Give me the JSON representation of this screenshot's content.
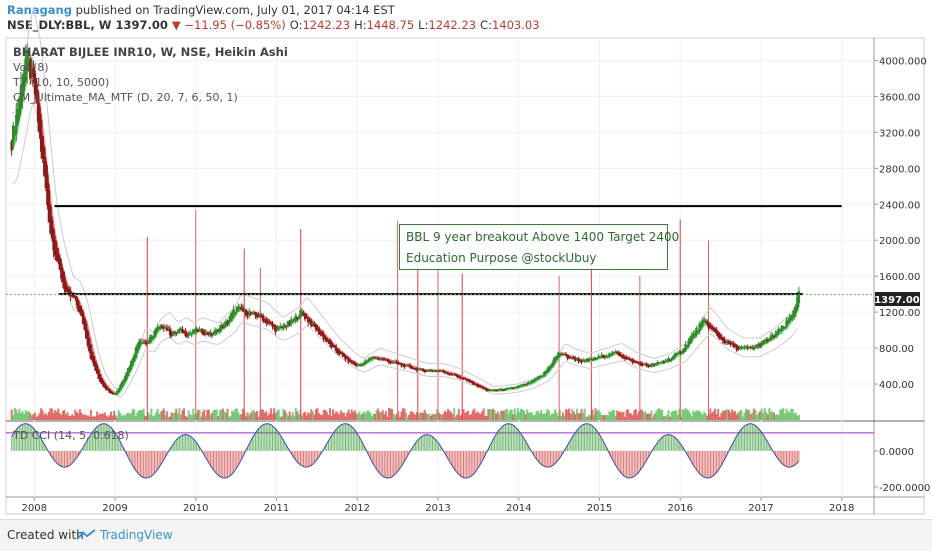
{
  "header": {
    "author": "Ranagang",
    "published": "published on TradingView.com, July 01, 2017 04:14 EST"
  },
  "quote": {
    "symbol": "NSE_DLY:BBL, W",
    "price": "1397.00",
    "change": "▼ −11.95 (−0.85%)",
    "o_label": "O:",
    "o": "1242.23",
    "h_label": "H:",
    "h": "1448.75",
    "l_label": "L:",
    "l": "1242.23",
    "c_label": "C:",
    "c": "1403.03"
  },
  "legend": {
    "title": "BHARAT BIJLEE INR10, W, NSE, Heikin Ashi",
    "vol": "Vol (8)",
    "tz": "TZ (10, 10, 5000)",
    "ma": "CM_Ultimate_MA_MTF (D, 20, 7, 6, 50, 1)",
    "cci": "TD CCI (14, 5, 0.618)"
  },
  "annotation": {
    "line1": "BBL 9 year breakout Above 1400 Target 2400",
    "line2": "Education Purpose @stockUbuy"
  },
  "price_tag": "1397.00",
  "footer": {
    "created": "Created with",
    "brand": "TradingView"
  },
  "colors": {
    "up": "#2e8b2e",
    "down": "#8b1a1a",
    "ma_green": "#7ee07e",
    "ma_red": "#f08080",
    "tz_line": "#cccccc",
    "resistance": "#000000",
    "cci_line": "#3a4fa0",
    "cci_level": "#9932cc",
    "price_tag_bg": "#222222",
    "accent_blue": "#3a8fd0"
  },
  "chart_data": {
    "type": "line",
    "chart_style": "Heikin Ashi weekly candlestick",
    "x_ticks": [
      "2008",
      "2009",
      "2010",
      "2011",
      "2012",
      "2013",
      "2014",
      "2015",
      "2016",
      "2017",
      "2018"
    ],
    "y_ticks": [
      "4000.000",
      "3600.00",
      "3200.00",
      "2800.00",
      "2400.00",
      "2000.00",
      "1600.00",
      "1200.00",
      "800.00",
      "400.00"
    ],
    "ylim": [
      0,
      4250
    ],
    "x_range": [
      2007.65,
      2018.4
    ],
    "price_series": {
      "x": [
        2007.7,
        2007.8,
        2007.9,
        2008.0,
        2008.05,
        2008.1,
        2008.2,
        2008.3,
        2008.4,
        2008.5,
        2008.6,
        2008.7,
        2008.8,
        2008.9,
        2009.0,
        2009.1,
        2009.2,
        2009.3,
        2009.4,
        2009.5,
        2009.6,
        2009.7,
        2009.8,
        2009.9,
        2010.0,
        2010.2,
        2010.4,
        2010.5,
        2010.6,
        2010.8,
        2011.0,
        2011.2,
        2011.3,
        2011.5,
        2011.7,
        2011.9,
        2012.0,
        2012.2,
        2012.4,
        2012.6,
        2012.8,
        2013.0,
        2013.2,
        2013.4,
        2013.6,
        2013.7,
        2013.9,
        2014.1,
        2014.3,
        2014.5,
        2014.6,
        2014.8,
        2015.0,
        2015.2,
        2015.4,
        2015.6,
        2015.8,
        2016.0,
        2016.2,
        2016.3,
        2016.5,
        2016.7,
        2016.9,
        2017.1,
        2017.3,
        2017.4,
        2017.47
      ],
      "y": [
        3000,
        3500,
        4050,
        3700,
        3300,
        2900,
        2100,
        1700,
        1400,
        1350,
        1100,
        700,
        450,
        330,
        280,
        450,
        650,
        900,
        850,
        1000,
        1050,
        950,
        1000,
        950,
        1000,
        950,
        1100,
        1250,
        1200,
        1150,
        1000,
        1100,
        1200,
        1000,
        800,
        650,
        600,
        700,
        650,
        600,
        550,
        550,
        500,
        420,
        330,
        330,
        350,
        400,
        500,
        750,
        700,
        650,
        700,
        750,
        650,
        600,
        650,
        750,
        1000,
        1100,
        900,
        800,
        800,
        900,
        1050,
        1200,
        1403
      ]
    },
    "resistance_levels": [
      {
        "value": 2380,
        "x_start": 2008.25,
        "x_end": 2018.0
      },
      {
        "value": 1400,
        "x_start": 2008.3,
        "x_end": 2017.52
      }
    ],
    "volume_spikes_x": [
      2009.4,
      2010.0,
      2010.6,
      2010.8,
      2011.3,
      2012.5,
      2012.75,
      2013.0,
      2013.3,
      2014.5,
      2014.9,
      2015.5,
      2016.0,
      2016.35
    ],
    "cci": {
      "title": "TD CCI (14, 5, 0.618)",
      "y_ticks": [
        "0.0000",
        "-200.0000"
      ],
      "ylim": [
        -250,
        160
      ],
      "level": 100
    }
  }
}
